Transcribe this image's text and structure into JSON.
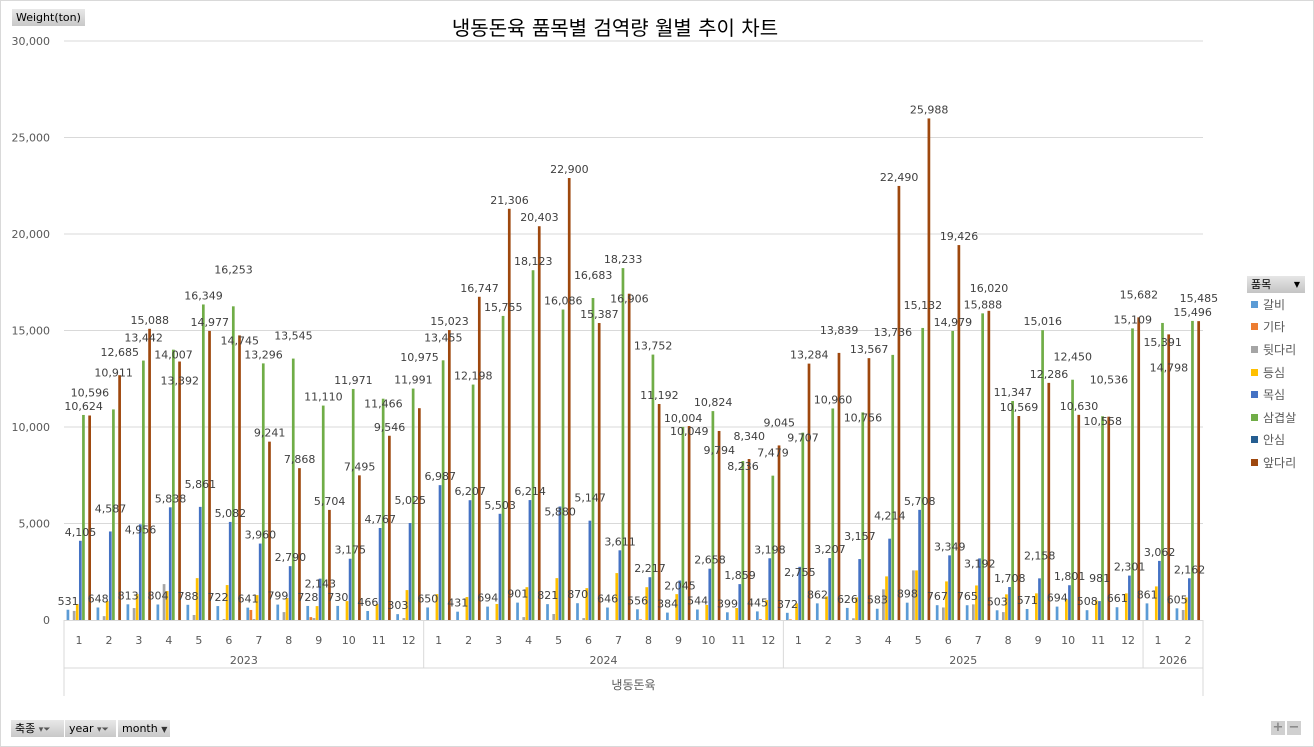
{
  "chart_data": {
    "type": "bar",
    "title": "냉동돈육  품목별 검역량 월별 추이 차트",
    "ylabel": "Weight(ton)",
    "xlabel": "냉동돈육",
    "ylim": [
      0,
      30000
    ],
    "yticks": [
      0,
      5000,
      10000,
      15000,
      20000,
      25000,
      30000
    ],
    "ytick_labels": [
      "0",
      "5,000",
      "10,000",
      "15,000",
      "20,000",
      "25,000",
      "30,000"
    ],
    "grid": true,
    "legend_placement": "right",
    "legend_title": "품목",
    "years": [
      {
        "label": "2023",
        "months": [
          "1",
          "2",
          "3",
          "4",
          "5",
          "6",
          "7",
          "8",
          "9",
          "10",
          "11",
          "12"
        ]
      },
      {
        "label": "2024",
        "months": [
          "1",
          "2",
          "3",
          "4",
          "5",
          "6",
          "7",
          "8",
          "9",
          "10",
          "11",
          "12"
        ]
      },
      {
        "label": "2025",
        "months": [
          "1",
          "2",
          "3",
          "4",
          "5",
          "6",
          "7",
          "8",
          "9",
          "10",
          "11",
          "12"
        ]
      },
      {
        "label": "2026",
        "months": [
          "1",
          "2"
        ]
      }
    ],
    "series": [
      {
        "name": "갈비",
        "color": "#5B9BD5",
        "labeled": true,
        "values": [
          531,
          648,
          813,
          804,
          788,
          722,
          641,
          799,
          728,
          730,
          466,
          303,
          650,
          431,
          694,
          901,
          821,
          870,
          646,
          556,
          384,
          544,
          399,
          445,
          372,
          862,
          626,
          583,
          898,
          767,
          765,
          503,
          571,
          694,
          508,
          661,
          861,
          605
        ]
      },
      {
        "name": "기타",
        "color": "#ED7D31",
        "labeled": false,
        "values": [
          0,
          0,
          0,
          0,
          0,
          0,
          520,
          0,
          150,
          0,
          0,
          0,
          0,
          0,
          0,
          0,
          0,
          0,
          0,
          30,
          0,
          0,
          0,
          40,
          30,
          0,
          0,
          0,
          0,
          0,
          0,
          0,
          0,
          0,
          0,
          0,
          0,
          0
        ]
      },
      {
        "name": "뒷다리",
        "color": "#A5A5A5",
        "labeled": false,
        "values": [
          470,
          200,
          620,
          1860,
          260,
          50,
          50,
          410,
          100,
          0,
          0,
          100,
          0,
          0,
          0,
          150,
          310,
          100,
          0,
          0,
          0,
          0,
          0,
          0,
          0,
          0,
          90,
          1590,
          2570,
          650,
          810,
          410,
          0,
          0,
          0,
          0,
          0,
          520
        ]
      },
      {
        "name": "등심",
        "color": "#FFC000",
        "labeled": false,
        "values": [
          830,
          980,
          1340,
          1500,
          2170,
          1810,
          1290,
          1140,
          720,
          980,
          830,
          1550,
          1340,
          1190,
          830,
          1700,
          2170,
          1650,
          2430,
          1700,
          1340,
          780,
          620,
          1030,
          860,
          1220,
          1170,
          2260,
          2570,
          2000,
          1790,
          1330,
          1380,
          1070,
          1020,
          1380,
          1740,
          1170
        ]
      },
      {
        "name": "목심",
        "color": "#4472C4",
        "labeled": true,
        "values": [
          4105,
          4587,
          4956,
          5838,
          5861,
          5082,
          3960,
          2790,
          2143,
          3175,
          4767,
          5025,
          6987,
          6207,
          5503,
          6214,
          5880,
          5147,
          3611,
          2217,
          2045,
          2658,
          1859,
          3198,
          2755,
          3207,
          3157,
          4214,
          5708,
          3349,
          3192,
          1708,
          2158,
          1801,
          981,
          2301,
          3062,
          2162
        ]
      },
      {
        "name": "삼겹살",
        "color": "#70AD47",
        "labeled": true,
        "values": [
          10624,
          10911,
          13442,
          14007,
          16349,
          16253,
          13296,
          13545,
          11110,
          11971,
          11466,
          11991,
          13455,
          12198,
          15755,
          18123,
          16086,
          16683,
          18233,
          13752,
          10004,
          10824,
          8236,
          7479,
          9707,
          10960,
          10756,
          13736,
          15132,
          14979,
          15888,
          11347,
          15016,
          12450,
          10558,
          15109,
          15391,
          15496
        ]
      },
      {
        "name": "안심",
        "color": "#255E91",
        "labeled": false,
        "values": [
          0,
          0,
          0,
          0,
          0,
          0,
          0,
          0,
          0,
          0,
          0,
          0,
          0,
          0,
          0,
          0,
          0,
          0,
          0,
          0,
          0,
          0,
          0,
          0,
          0,
          0,
          0,
          0,
          0,
          0,
          0,
          0,
          0,
          0,
          0,
          0,
          0,
          0
        ]
      },
      {
        "name": "앞다리",
        "color": "#9E480E",
        "labeled": true,
        "values": [
          10596,
          12685,
          15088,
          13392,
          14977,
          14745,
          9241,
          7868,
          5704,
          7495,
          9546,
          10975,
          15023,
          16747,
          21306,
          20403,
          22900,
          15387,
          16906,
          11192,
          10049,
          9794,
          8340,
          9045,
          13284,
          13839,
          13567,
          22490,
          25988,
          19426,
          16020,
          10569,
          12286,
          10630,
          10536,
          15682,
          14798,
          15485
        ]
      }
    ]
  },
  "filters": {
    "species": "축종",
    "year": "year",
    "month": "month"
  },
  "zoom_controls": {
    "plus": "+",
    "minus": "−"
  }
}
